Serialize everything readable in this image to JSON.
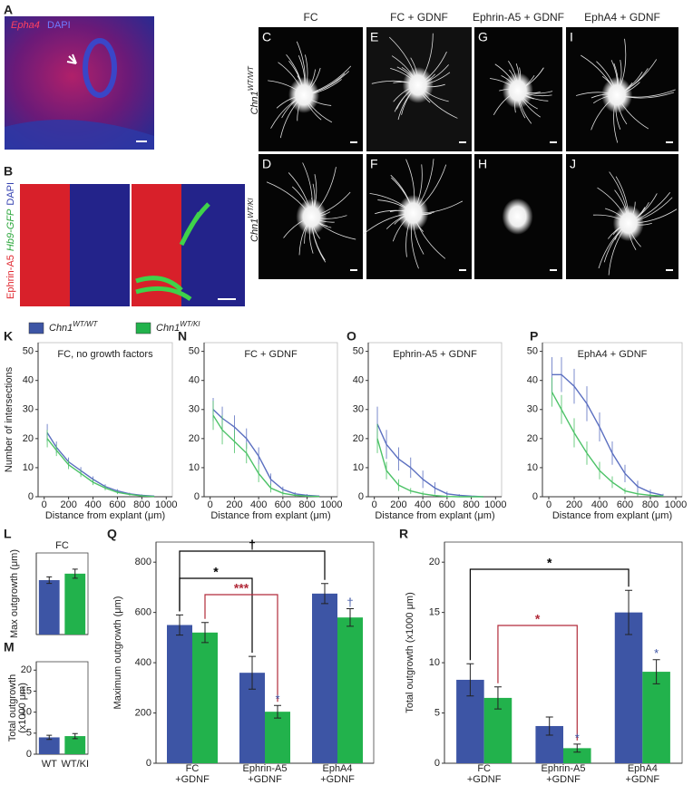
{
  "figure": {
    "panel_a": {
      "letter": "A",
      "labels": [
        "Epha4",
        "DAPI"
      ]
    },
    "panel_b": {
      "letter": "B",
      "labels": [
        "Ephrin-A5",
        "Hb9-GFP",
        "DAPI"
      ]
    },
    "explants": {
      "columns": [
        "FC",
        "FC + GDNF",
        "Ephrin-A5 + GDNF",
        "EphA4 + GDNF"
      ],
      "rows": [
        {
          "gene": "Chn1",
          "genotype": "WT/WT"
        },
        {
          "gene": "Chn1",
          "genotype": "WT/KI"
        }
      ],
      "letters": [
        [
          "C",
          "E",
          "G",
          "I"
        ],
        [
          "D",
          "F",
          "H",
          "J"
        ]
      ]
    },
    "legend": [
      {
        "gene": "Chn1",
        "genotype": "WT/WT",
        "color": "#3d55a5"
      },
      {
        "gene": "Chn1",
        "genotype": "WT/KI",
        "color": "#22b24c"
      }
    ]
  },
  "chart_data": [
    {
      "type": "line",
      "letter": "K",
      "title": "FC, no growth factors",
      "ylabel": "Number of intersections",
      "xlabel": "Distance from explant (μm)",
      "x": [
        25,
        100,
        200,
        300,
        400,
        500,
        600,
        700,
        800,
        900
      ],
      "xlim": [
        -50,
        1050
      ],
      "xticks": [
        0,
        200,
        400,
        600,
        800,
        1000
      ],
      "ylim": [
        0,
        53
      ],
      "yticks": [
        0,
        10,
        20,
        30,
        40,
        50
      ],
      "series": [
        {
          "color": "#5b6fc0",
          "values": [
            22,
            17,
            12,
            9,
            6,
            3.5,
            2,
            1,
            0.5,
            0.2
          ],
          "errors": [
            3,
            2,
            1.5,
            1.2,
            1,
            0.8,
            0.6,
            0.4,
            0.3,
            0.2
          ]
        },
        {
          "color": "#4cc267",
          "values": [
            20,
            16,
            11,
            8,
            5,
            3,
            1.5,
            0.8,
            0.3,
            0.1
          ],
          "errors": [
            3,
            2,
            1.5,
            1.2,
            1,
            0.8,
            0.6,
            0.4,
            0.3,
            0.1
          ]
        }
      ]
    },
    {
      "type": "line",
      "letter": "N",
      "title": "FC + GDNF",
      "xlabel": "Distance from explant (μm)",
      "x": [
        25,
        100,
        200,
        300,
        400,
        500,
        600,
        700,
        800,
        900
      ],
      "xlim": [
        -50,
        1050
      ],
      "xticks": [
        0,
        200,
        400,
        600,
        800,
        1000
      ],
      "ylim": [
        0,
        53
      ],
      "yticks": [
        0,
        10,
        20,
        30,
        40,
        50
      ],
      "series": [
        {
          "color": "#5b6fc0",
          "values": [
            30,
            27,
            24,
            20,
            14,
            6,
            2.5,
            1,
            0.5,
            0.2
          ],
          "errors": [
            4,
            4,
            4,
            3.5,
            3,
            2,
            1,
            0.6,
            0.4,
            0.2
          ]
        },
        {
          "color": "#4cc267",
          "values": [
            28,
            23,
            19,
            15,
            8,
            3,
            1.2,
            0.5,
            0.2,
            0.1
          ],
          "errors": [
            5,
            5,
            4,
            3.5,
            3,
            1.5,
            0.8,
            0.4,
            0.2,
            0.1
          ]
        }
      ]
    },
    {
      "type": "line",
      "letter": "O",
      "title": "Ephrin-A5 + GDNF",
      "xlabel": "Distance from explant (μm)",
      "x": [
        25,
        100,
        200,
        300,
        400,
        500,
        600,
        700,
        800,
        900
      ],
      "xlim": [
        -50,
        1050
      ],
      "xticks": [
        0,
        200,
        400,
        600,
        800,
        1000
      ],
      "ylim": [
        0,
        53
      ],
      "yticks": [
        0,
        10,
        20,
        30,
        40,
        50
      ],
      "series": [
        {
          "color": "#5b6fc0",
          "values": [
            25,
            18,
            13,
            10,
            6,
            3,
            1,
            0.5,
            0.2,
            0
          ],
          "errors": [
            6,
            5,
            4,
            3.5,
            3,
            2,
            0.8,
            0.4,
            0.2,
            0
          ]
        },
        {
          "color": "#4cc267",
          "values": [
            20,
            9,
            4,
            2,
            1,
            0.4,
            0.1,
            0,
            0,
            0
          ],
          "errors": [
            5,
            3,
            2,
            1,
            0.8,
            0.4,
            0.1,
            0,
            0,
            0
          ]
        }
      ]
    },
    {
      "type": "line",
      "letter": "P",
      "title": "EphA4 + GDNF",
      "xlabel": "Distance from explant (μm)",
      "x": [
        25,
        100,
        200,
        300,
        400,
        500,
        600,
        700,
        800,
        900
      ],
      "xlim": [
        -50,
        1050
      ],
      "xticks": [
        0,
        200,
        400,
        600,
        800,
        1000
      ],
      "ylim": [
        0,
        53
      ],
      "yticks": [
        0,
        10,
        20,
        30,
        40,
        50
      ],
      "series": [
        {
          "color": "#5b6fc0",
          "values": [
            42,
            42,
            38,
            32,
            24,
            15,
            8,
            3.5,
            1.5,
            0.5
          ],
          "errors": [
            6,
            6,
            6,
            6,
            5,
            4,
            3,
            2,
            1,
            0.5
          ]
        },
        {
          "color": "#4cc267",
          "values": [
            36,
            30,
            22,
            15,
            9,
            5,
            2,
            1,
            0.5,
            0.2
          ],
          "errors": [
            5,
            5,
            5,
            4,
            3,
            2,
            1,
            0.8,
            0.5,
            0.2
          ]
        }
      ]
    },
    {
      "type": "bar",
      "letter": "L",
      "title": "FC",
      "ylabel": "Max outgrowth (μm)",
      "ylim": [
        0,
        630
      ],
      "values": [
        420,
        470
      ],
      "errors": [
        25,
        35
      ],
      "colors": [
        "#3d55a5",
        "#22b24c"
      ]
    },
    {
      "type": "bar",
      "letter": "M",
      "ylabel": [
        "Total outgrowth",
        "(x1000 μm)"
      ],
      "categories": [
        "WT",
        "WT/KI"
      ],
      "ylim": [
        0,
        22
      ],
      "yticks": [
        0,
        5,
        10,
        15,
        20
      ],
      "values": [
        4.0,
        4.3
      ],
      "errors": [
        0.5,
        0.6
      ],
      "colors": [
        "#3d55a5",
        "#22b24c"
      ]
    },
    {
      "type": "grouped_bar",
      "letter": "Q",
      "ylabel": "Maximum outgrowth (μm)",
      "categories": [
        [
          "FC",
          "+GDNF"
        ],
        [
          "Ephrin-A5",
          "+GDNF"
        ],
        [
          "EphA4",
          "+GDNF"
        ]
      ],
      "ylim": [
        0,
        880
      ],
      "yticks": [
        0,
        200,
        400,
        600,
        800
      ],
      "series": [
        {
          "color": "#3d55a5",
          "values": [
            550,
            360,
            675
          ],
          "errors": [
            40,
            65,
            40
          ]
        },
        {
          "color": "#22b24c",
          "values": [
            520,
            205,
            580
          ],
          "errors": [
            40,
            25,
            35
          ]
        }
      ],
      "annotations": [
        {
          "text": "†",
          "color": "#000000"
        },
        {
          "text": "*",
          "color": "#000000"
        },
        {
          "text": "***",
          "color": "#b22b3a"
        },
        {
          "text": "*",
          "color": "#3d55a5"
        },
        {
          "text": "†",
          "color": "#3d55a5"
        }
      ]
    },
    {
      "type": "grouped_bar",
      "letter": "R",
      "ylabel": "Total outgrowth (x1000 μm)",
      "categories": [
        [
          "FC",
          "+GDNF"
        ],
        [
          "Ephrin-A5",
          "+GDNF"
        ],
        [
          "EphA4",
          "+GDNF"
        ]
      ],
      "ylim": [
        0,
        22
      ],
      "yticks": [
        0,
        5,
        10,
        15,
        20
      ],
      "series": [
        {
          "color": "#3d55a5",
          "values": [
            8.3,
            3.7,
            15.0
          ],
          "errors": [
            1.6,
            0.9,
            2.2
          ]
        },
        {
          "color": "#22b24c",
          "values": [
            6.5,
            1.5,
            9.1
          ],
          "errors": [
            1.1,
            0.4,
            1.2
          ]
        }
      ],
      "annotations": [
        {
          "text": "*",
          "color": "#000000"
        },
        {
          "text": "*",
          "color": "#b22b3a"
        },
        {
          "text": "*",
          "color": "#3d55a5"
        },
        {
          "text": "*",
          "color": "#3d55a5"
        }
      ]
    }
  ]
}
